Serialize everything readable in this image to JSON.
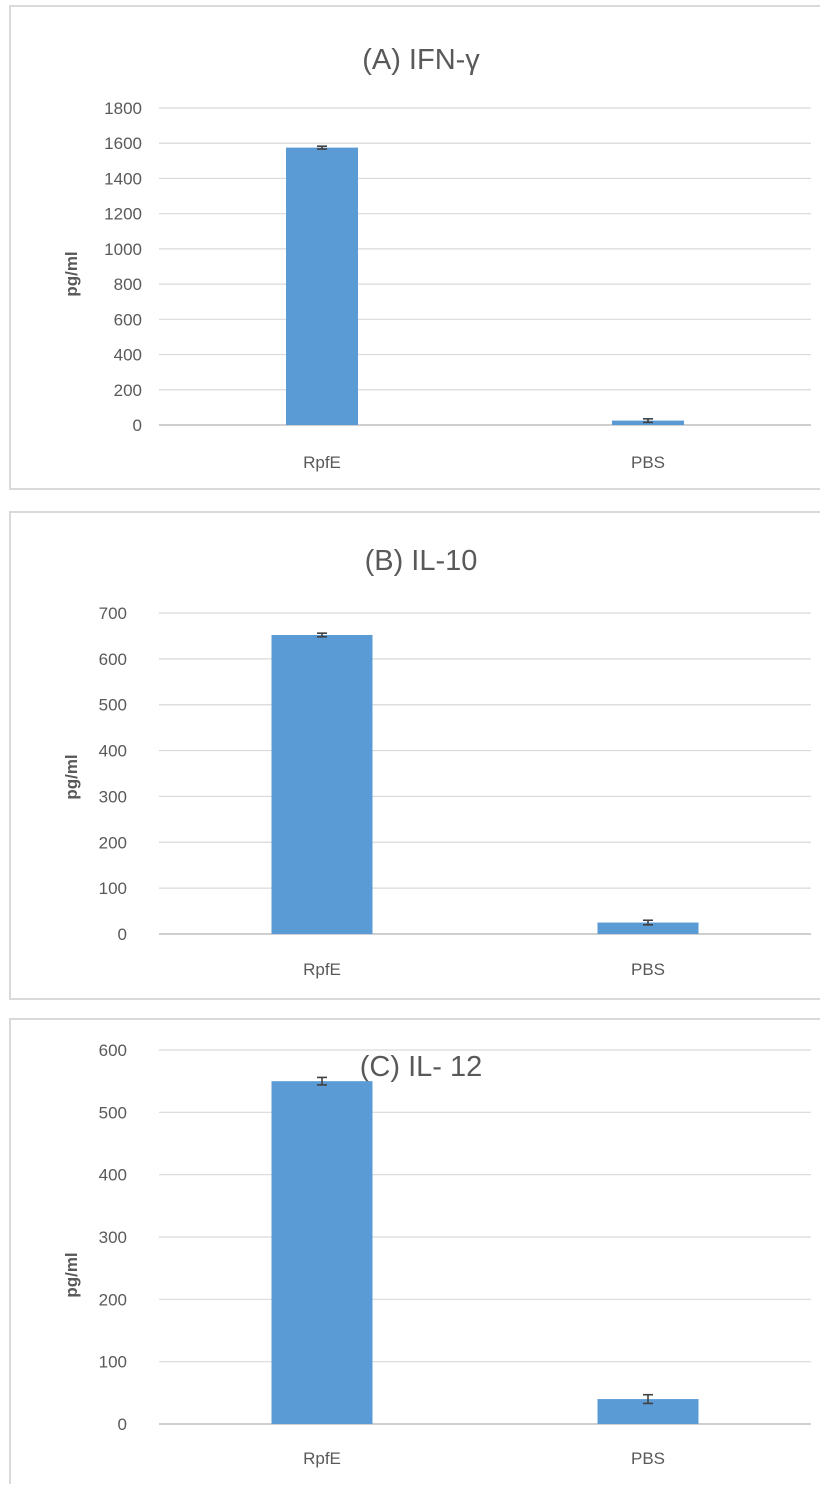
{
  "colors": {
    "bar": "#5b9bd5",
    "grid": "#d9d9d9",
    "text": "#595959",
    "error_bar": "#404040"
  },
  "chart_data": [
    {
      "type": "bar",
      "title": "(A) IFN-γ",
      "ylabel": "pg/ml",
      "xlabel": "",
      "categories": [
        "RpfE",
        "PBS"
      ],
      "values": [
        1575,
        25
      ],
      "errors": [
        8,
        10
      ],
      "ylim": [
        0,
        1800
      ],
      "yticks": [
        "0",
        "200",
        "400",
        "600",
        "800",
        "1000",
        "1200",
        "1400",
        "1600",
        "1800"
      ],
      "grid": true,
      "legend": "none"
    },
    {
      "type": "bar",
      "title": "(B) IL-10",
      "ylabel": "pg/ml",
      "xlabel": "",
      "categories": [
        "RpfE",
        "PBS"
      ],
      "values": [
        652,
        25
      ],
      "errors": [
        4,
        5
      ],
      "ylim": [
        0,
        700
      ],
      "yticks": [
        "0",
        "100",
        "200",
        "300",
        "400",
        "500",
        "600",
        "700"
      ],
      "grid": true,
      "legend": "none"
    },
    {
      "type": "bar",
      "title": "(C) IL- 12",
      "ylabel": "pg/ml",
      "xlabel": "",
      "categories": [
        "RpfE",
        "PBS"
      ],
      "values": [
        550,
        40
      ],
      "errors": [
        6,
        7
      ],
      "ylim": [
        0,
        600
      ],
      "yticks": [
        "0",
        "100",
        "200",
        "300",
        "400",
        "500",
        "600"
      ],
      "grid": true,
      "legend": "none"
    }
  ]
}
